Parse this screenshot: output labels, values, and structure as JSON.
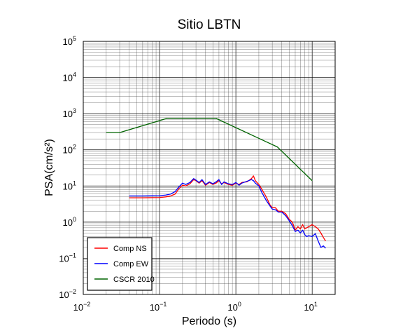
{
  "chart_data": {
    "type": "line",
    "title": "Sitio LBTN",
    "xlabel": "Periodo (s)",
    "ylabel": "PSA(cm/s²)",
    "xscale": "log",
    "yscale": "log",
    "xlim": [
      0.01,
      20
    ],
    "ylim": [
      0.01,
      100000
    ],
    "grid": true,
    "legend_position": "bottom-left",
    "x_tick_labels": [
      {
        "base": "10",
        "exp": "−2"
      },
      {
        "base": "10",
        "exp": "−1"
      },
      {
        "base": "10",
        "exp": "0"
      },
      {
        "base": "10",
        "exp": "1"
      }
    ],
    "y_tick_labels": [
      {
        "base": "10",
        "exp": "−2"
      },
      {
        "base": "10",
        "exp": "−1"
      },
      {
        "base": "10",
        "exp": "0"
      },
      {
        "base": "10",
        "exp": "1"
      },
      {
        "base": "10",
        "exp": "2"
      },
      {
        "base": "10",
        "exp": "3"
      },
      {
        "base": "10",
        "exp": "4"
      },
      {
        "base": "10",
        "exp": "5"
      }
    ],
    "series": [
      {
        "name": "Comp NS",
        "color": "#ff0000",
        "points": [
          [
            0.04,
            4.7
          ],
          [
            0.06,
            4.7
          ],
          [
            0.08,
            4.75
          ],
          [
            0.1,
            4.8
          ],
          [
            0.12,
            5.0
          ],
          [
            0.14,
            5.3
          ],
          [
            0.16,
            6.0
          ],
          [
            0.18,
            8.5
          ],
          [
            0.2,
            10.5
          ],
          [
            0.22,
            10.0
          ],
          [
            0.25,
            11.5
          ],
          [
            0.28,
            15.0
          ],
          [
            0.3,
            14.0
          ],
          [
            0.33,
            12.0
          ],
          [
            0.36,
            14.0
          ],
          [
            0.4,
            10.5
          ],
          [
            0.45,
            12.5
          ],
          [
            0.5,
            11.0
          ],
          [
            0.55,
            12.0
          ],
          [
            0.6,
            14.0
          ],
          [
            0.65,
            11.5
          ],
          [
            0.7,
            12.5
          ],
          [
            0.8,
            11.0
          ],
          [
            0.9,
            10.5
          ],
          [
            1.0,
            12.0
          ],
          [
            1.1,
            11.0
          ],
          [
            1.2,
            12.5
          ],
          [
            1.4,
            13.0
          ],
          [
            1.6,
            16.0
          ],
          [
            1.7,
            19.0
          ],
          [
            1.8,
            14.0
          ],
          [
            2.0,
            11.0
          ],
          [
            2.2,
            8.0
          ],
          [
            2.5,
            5.0
          ],
          [
            2.8,
            3.0
          ],
          [
            3.0,
            2.5
          ],
          [
            3.3,
            2.5
          ],
          [
            3.6,
            2.0
          ],
          [
            4.0,
            2.0
          ],
          [
            4.5,
            1.7
          ],
          [
            5.0,
            1.2
          ],
          [
            5.5,
            1.0
          ],
          [
            6.0,
            0.6
          ],
          [
            6.5,
            0.75
          ],
          [
            7.0,
            0.65
          ],
          [
            7.5,
            0.85
          ],
          [
            8.0,
            0.65
          ],
          [
            8.5,
            0.7
          ],
          [
            9.0,
            0.75
          ],
          [
            10.0,
            0.85
          ],
          [
            11.0,
            0.75
          ],
          [
            12.0,
            0.65
          ],
          [
            13.0,
            0.5
          ],
          [
            14.0,
            0.38
          ],
          [
            15.0,
            0.3
          ]
        ]
      },
      {
        "name": "Comp EW",
        "color": "#0000ff",
        "points": [
          [
            0.04,
            5.3
          ],
          [
            0.06,
            5.3
          ],
          [
            0.08,
            5.35
          ],
          [
            0.1,
            5.4
          ],
          [
            0.12,
            5.6
          ],
          [
            0.14,
            6.0
          ],
          [
            0.16,
            7.0
          ],
          [
            0.18,
            9.5
          ],
          [
            0.2,
            12.0
          ],
          [
            0.22,
            11.0
          ],
          [
            0.25,
            12.5
          ],
          [
            0.28,
            16.0
          ],
          [
            0.3,
            14.5
          ],
          [
            0.33,
            12.5
          ],
          [
            0.36,
            15.0
          ],
          [
            0.4,
            11.0
          ],
          [
            0.45,
            13.0
          ],
          [
            0.5,
            11.5
          ],
          [
            0.55,
            13.0
          ],
          [
            0.6,
            15.0
          ],
          [
            0.65,
            11.0
          ],
          [
            0.7,
            13.0
          ],
          [
            0.8,
            11.5
          ],
          [
            0.9,
            11.0
          ],
          [
            1.0,
            12.5
          ],
          [
            1.1,
            10.5
          ],
          [
            1.2,
            12.0
          ],
          [
            1.4,
            13.5
          ],
          [
            1.6,
            15.0
          ],
          [
            1.7,
            14.0
          ],
          [
            1.8,
            12.0
          ],
          [
            2.0,
            10.0
          ],
          [
            2.2,
            6.5
          ],
          [
            2.5,
            4.0
          ],
          [
            2.8,
            2.8
          ],
          [
            3.0,
            2.3
          ],
          [
            3.3,
            2.2
          ],
          [
            3.6,
            1.9
          ],
          [
            4.0,
            1.9
          ],
          [
            4.5,
            1.5
          ],
          [
            5.0,
            1.1
          ],
          [
            5.5,
            0.8
          ],
          [
            6.0,
            0.55
          ],
          [
            6.5,
            0.6
          ],
          [
            7.0,
            0.5
          ],
          [
            7.5,
            0.6
          ],
          [
            8.0,
            0.45
          ],
          [
            8.5,
            0.4
          ],
          [
            9.0,
            0.42
          ],
          [
            10.0,
            0.4
          ],
          [
            11.0,
            0.48
          ],
          [
            12.0,
            0.3
          ],
          [
            13.0,
            0.2
          ],
          [
            14.0,
            0.22
          ],
          [
            15.0,
            0.19
          ]
        ]
      },
      {
        "name": "CSCR 2010",
        "color": "#006400",
        "points": [
          [
            0.02,
            300
          ],
          [
            0.03,
            300
          ],
          [
            0.125,
            740
          ],
          [
            0.55,
            740
          ],
          [
            3.5,
            120
          ],
          [
            10.0,
            14
          ]
        ]
      }
    ]
  }
}
